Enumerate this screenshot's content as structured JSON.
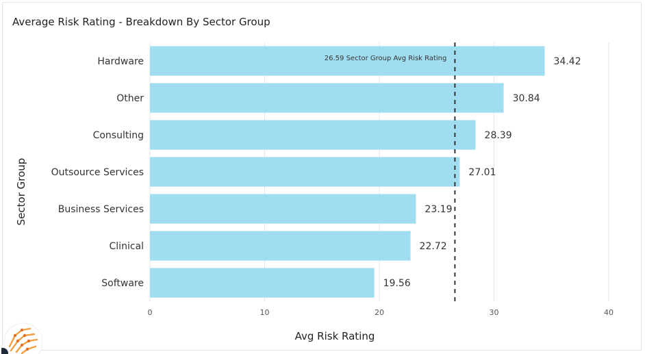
{
  "chart_data": {
    "type": "bar",
    "orientation": "horizontal",
    "title": "Average Risk Rating - Breakdown By Sector Group",
    "xlabel": "Avg Risk Rating",
    "ylabel": "Sector Group",
    "categories": [
      "Hardware",
      "Other",
      "Consulting",
      "Outsource Services",
      "Business Services",
      "Clinical",
      "Software"
    ],
    "values": [
      34.42,
      30.84,
      28.39,
      27.01,
      23.19,
      22.72,
      19.56
    ],
    "value_labels": [
      "34.42",
      "30.84",
      "28.39",
      "27.01",
      "23.19",
      "22.72",
      "19.56"
    ],
    "xlim": [
      0,
      40
    ],
    "xticks": [
      0,
      10,
      20,
      30,
      40
    ],
    "grid": true,
    "bar_color": "#a0ddf0",
    "reference_line": {
      "value": 26.59,
      "label": "26.59 Sector Group Avg Risk Rating",
      "style": "dashed",
      "color": "#333333"
    }
  },
  "branding": {
    "logo_icon": "orange-network-logo-icon"
  }
}
